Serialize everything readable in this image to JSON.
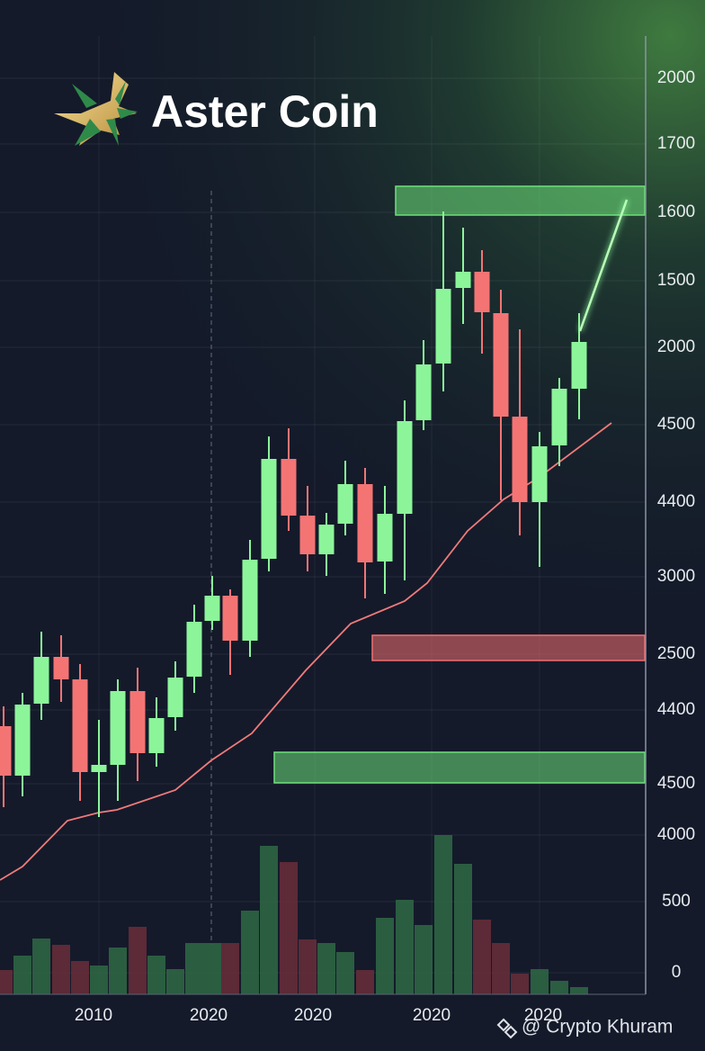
{
  "title": "Aster Coin",
  "y_axis_labels": [
    "2000",
    "1700",
    "1600",
    "1500",
    "2000",
    "4500",
    "4400",
    "3000",
    "2500",
    "4400",
    "4500",
    "4000",
    "500",
    "0"
  ],
  "x_axis_labels": [
    "2010",
    "2020",
    "2020",
    "2020",
    "2020"
  ],
  "watermark": "@ Crypto Khuram"
}
